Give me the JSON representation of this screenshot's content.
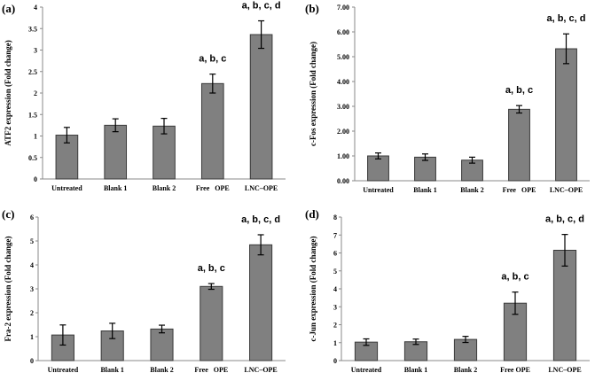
{
  "chart_data": [
    {
      "type": "bar",
      "panel": "(a)",
      "ylabel": "ATF2 expression (Fold change)",
      "categories": [
        "Untreated",
        "Blank 1",
        "Blank 2",
        "Free   OPE",
        "LNC–OPE"
      ],
      "values": [
        1.02,
        1.25,
        1.23,
        2.22,
        3.36
      ],
      "errors": [
        0.18,
        0.15,
        0.18,
        0.22,
        0.32
      ],
      "annotations": [
        "",
        "",
        "",
        "a, b, c",
        "a, b, c, d"
      ],
      "ylim": [
        0,
        4
      ],
      "yticks": [
        0,
        0.5,
        1,
        1.5,
        2,
        2.5,
        3,
        3.5,
        4
      ],
      "ytick_labels": [
        "0",
        "0.5",
        "1",
        "1.5",
        "2",
        "2.5",
        "3",
        "3.5",
        "4"
      ],
      "bar_color": "#808080"
    },
    {
      "type": "bar",
      "panel": "(b)",
      "ylabel": "c-Fos expression (Fold change)",
      "categories": [
        "Untreated",
        "Blank 1",
        "Blank 2",
        "Free   OPE",
        "LNC–OPE"
      ],
      "values": [
        1.0,
        0.95,
        0.83,
        2.88,
        5.32
      ],
      "errors": [
        0.12,
        0.13,
        0.12,
        0.15,
        0.6
      ],
      "annotations": [
        "",
        "",
        "",
        "a, b, c",
        "a, b, c, d"
      ],
      "ylim": [
        0,
        7
      ],
      "yticks": [
        0,
        1,
        2,
        3,
        4,
        5,
        6,
        7
      ],
      "ytick_labels": [
        "0.00",
        "1.00",
        "2.00",
        "3.00",
        "4.00",
        "5.00",
        "6.00",
        "7.00"
      ],
      "bar_color": "#808080"
    },
    {
      "type": "bar",
      "panel": "(c)",
      "ylabel": "Fra-2 expression (Fold change)",
      "categories": [
        "Untreated",
        "Blank 1",
        "Blank 2",
        "Free   OPE",
        "LNC–OPE"
      ],
      "values": [
        1.07,
        1.24,
        1.32,
        3.1,
        4.84
      ],
      "errors": [
        0.42,
        0.32,
        0.16,
        0.12,
        0.42
      ],
      "annotations": [
        "",
        "",
        "",
        "a, b, c",
        "a, b, c, d"
      ],
      "ylim": [
        0,
        6
      ],
      "yticks": [
        0,
        1,
        2,
        3,
        4,
        5,
        6
      ],
      "ytick_labels": [
        "0",
        "1",
        "2",
        "3",
        "4",
        "5",
        "6"
      ],
      "bar_color": "#808080"
    },
    {
      "type": "bar",
      "panel": "(d)",
      "ylabel": "c-Jun expression (Fold change)",
      "categories": [
        "Untreated",
        "Blank 1",
        "Blank 2",
        "Free OPE",
        "LNC–OPE"
      ],
      "values": [
        1.03,
        1.05,
        1.18,
        3.2,
        6.15
      ],
      "errors": [
        0.18,
        0.15,
        0.17,
        0.62,
        0.88
      ],
      "annotations": [
        "",
        "",
        "",
        "a, b, c",
        "a, b, c, d"
      ],
      "ylim": [
        0,
        8
      ],
      "yticks": [
        0,
        1,
        2,
        3,
        4,
        5,
        6,
        7,
        8
      ],
      "ytick_labels": [
        "0",
        "1",
        "2",
        "3",
        "4",
        "5",
        "6",
        "7",
        "8"
      ],
      "bar_color": "#808080"
    }
  ]
}
